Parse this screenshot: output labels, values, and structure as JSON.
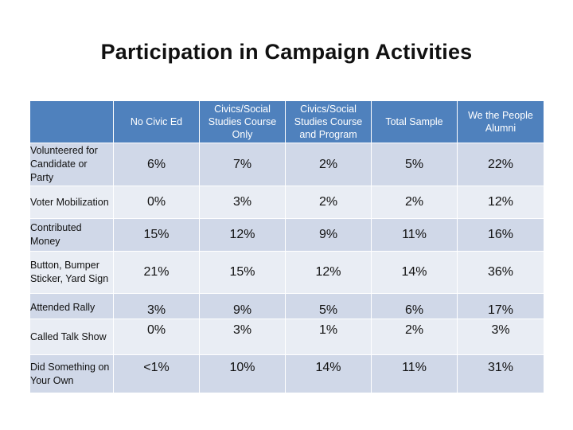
{
  "title": "Participation in Campaign Activities",
  "table": {
    "columns": [
      "",
      "No Civic Ed",
      "Civics/Social Studies Course Only",
      "Civics/Social Studies Course and Program",
      "Total Sample",
      "We the People Alumni"
    ],
    "rows": [
      {
        "label": "Volunteered for Candidate or Party",
        "values": [
          "6%",
          "7%",
          "2%",
          "5%",
          "22%"
        ]
      },
      {
        "label": "Voter Mobilization",
        "values": [
          "0%",
          "3%",
          "2%",
          "2%",
          "12%"
        ]
      },
      {
        "label": "Contributed Money",
        "values": [
          "15%",
          "12%",
          "9%",
          "11%",
          "16%"
        ]
      },
      {
        "label": "Button, Bumper Sticker, Yard Sign",
        "values": [
          "21%",
          "15%",
          "12%",
          "14%",
          "36%"
        ]
      },
      {
        "label": "Attended Rally",
        "values": [
          "3%",
          "9%",
          "5%",
          "6%",
          "17%"
        ]
      },
      {
        "label": "Called Talk Show",
        "values": [
          "0%",
          "3%",
          "1%",
          "2%",
          "3%"
        ]
      },
      {
        "label": "Did Something on Your Own",
        "values": [
          "<1%",
          "10%",
          "14%",
          "11%",
          "31%"
        ]
      }
    ]
  },
  "colors": {
    "header_bg": "#4f81bd",
    "row_dark": "#d0d8e8",
    "row_light": "#e9edf4"
  }
}
